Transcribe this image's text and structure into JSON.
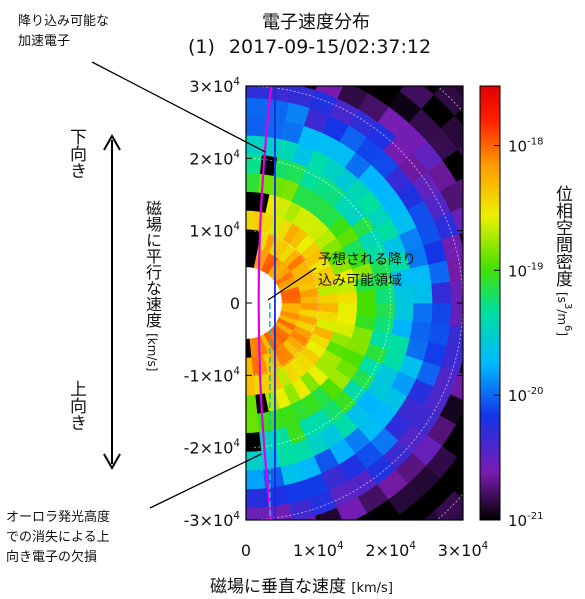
{
  "figure": {
    "title": "電子速度分布",
    "panel_label": "(1)",
    "timestamp": "2017-09-15/02:37:12",
    "annotation_top_lines": [
      "降り込み可能な",
      "加速電子"
    ],
    "annotation_bottom_lines": [
      "オーロラ発光高度",
      "での消失による上",
      "向き電子の欠損"
    ],
    "annotation_region_lines": [
      "予想される降り",
      "込み可能領域"
    ],
    "direction_down": "下向き",
    "direction_up": "上向き"
  },
  "colors": {
    "magenta_line": "#e000e0",
    "blue_line": "#1a2bd6",
    "cyan_line": "#18b8c8",
    "annotation_arrow": "#000000"
  },
  "chart_data": {
    "type": "heatmap",
    "title": "電子速度分布",
    "xlabel": "磁場に垂直な速度",
    "xlabel_unit": "[km/s]",
    "ylabel": "磁場に平行な速度",
    "ylabel_unit": "[km/s]",
    "xlim": [
      0,
      30000
    ],
    "ylim": [
      -30000,
      30000
    ],
    "x_ticks": [
      {
        "value": 0,
        "mantissa": "0",
        "exp": ""
      },
      {
        "value": 10000,
        "mantissa": "1×10",
        "exp": "4"
      },
      {
        "value": 20000,
        "mantissa": "2×10",
        "exp": "4"
      },
      {
        "value": 30000,
        "mantissa": "3×10",
        "exp": "4"
      }
    ],
    "y_ticks": [
      {
        "value": 30000,
        "mantissa": "3×10",
        "exp": "4"
      },
      {
        "value": 20000,
        "mantissa": "2×10",
        "exp": "4"
      },
      {
        "value": 10000,
        "mantissa": "1×10",
        "exp": "4"
      },
      {
        "value": 0,
        "mantissa": "0",
        "exp": ""
      },
      {
        "value": -10000,
        "mantissa": "-1×10",
        "exp": "4"
      },
      {
        "value": -20000,
        "mantissa": "-2×10",
        "exp": "4"
      },
      {
        "value": -30000,
        "mantissa": "-3×10",
        "exp": "4"
      }
    ],
    "colorbar": {
      "label": "位相空間密度",
      "unit_prefix": "[s",
      "unit_exp1": "3",
      "unit_mid": "/m",
      "unit_exp2": "6",
      "unit_suffix": "]",
      "scale": "log",
      "range": [
        1e-21,
        3e-18
      ],
      "ticks": [
        {
          "value": 1e-18,
          "base": "10",
          "exp": "-18"
        },
        {
          "value": 1e-19,
          "base": "10",
          "exp": "-19"
        },
        {
          "value": 1e-20,
          "base": "10",
          "exp": "-20"
        },
        {
          "value": 1e-21,
          "base": "10",
          "exp": "-21"
        }
      ]
    },
    "grid": true,
    "guide_lines": [
      {
        "name": "magenta",
        "x_at_y_max": 3500,
        "x_at_y_zero": 1600,
        "x_at_y_min": 3500
      },
      {
        "name": "blue",
        "x_value": 4000
      },
      {
        "name": "cyan",
        "x_value": 3300,
        "y_range": [
          -30000,
          0
        ]
      }
    ],
    "gap_radius": 5000,
    "log_density_profile": {
      "r": [
        5000,
        9000,
        13000,
        17000,
        21000,
        25000,
        29000,
        32000,
        36000
      ],
      "log10_f": [
        -18.1,
        -18.25,
        -18.6,
        -19.0,
        -19.45,
        -19.9,
        -20.35,
        -20.7,
        -21.0
      ]
    }
  }
}
